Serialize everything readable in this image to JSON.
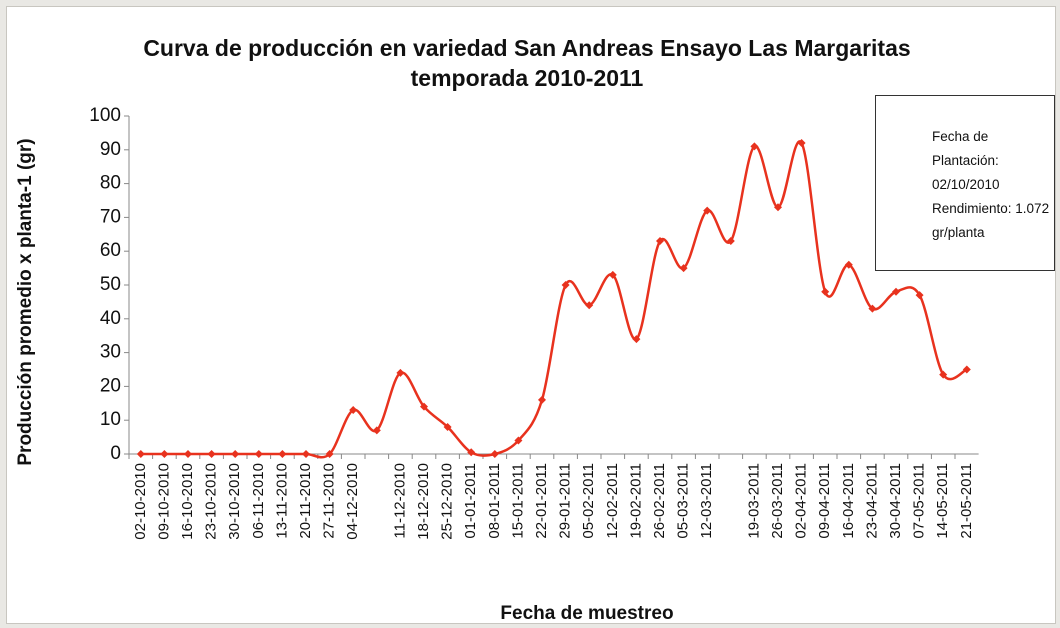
{
  "chart_data": {
    "type": "line",
    "title": "Curva de producción en variedad San Andreas Ensayo Las Margaritas temporada 2010-2011",
    "x_label": "Fecha de muestreo",
    "y_label": "Producción promedio x planta-1 (gr)",
    "categories": [
      "02-10-2010",
      "09-10-2010",
      "16-10-2010",
      "23-10-2010",
      "30-10-2010",
      "06-11-2010",
      "13-11-2010",
      "20-11-2010",
      "27-11-2010",
      "04-12-2010",
      null,
      "11-12-2010",
      "18-12-2010",
      "25-12-2010",
      "01-01-2011",
      "08-01-2011",
      "15-01-2011",
      "22-01-2011",
      "29-01-2011",
      "05-02-2011",
      "12-02-2011",
      "19-02-2011",
      "26-02-2011",
      "05-03-2011",
      "12-03-2011",
      null,
      "19-03-2011",
      "26-03-2011",
      "02-04-2011",
      "09-04-2011",
      "16-04-2011",
      "23-04-2011",
      "30-04-2011",
      "07-05-2011",
      "14-05-2011",
      "21-05-2011"
    ],
    "series": [
      {
        "name": "Fecha de Plantación: 02/10/2010 Rendimiento: 1.072 gr/planta",
        "color": "#e8321e",
        "values": [
          0,
          0,
          0,
          0,
          0,
          0,
          0,
          0,
          0,
          13,
          7,
          24,
          14,
          8,
          0.5,
          0,
          4,
          16,
          50,
          44,
          53,
          34,
          63,
          55,
          72,
          63,
          91,
          73,
          92,
          48,
          56,
          43,
          48,
          47,
          23.5,
          25
        ]
      }
    ],
    "ylim": [
      0,
      100
    ],
    "yticks": [
      0,
      10,
      20,
      30,
      40,
      50,
      60,
      70,
      80,
      90,
      100
    ],
    "grid": false
  }
}
